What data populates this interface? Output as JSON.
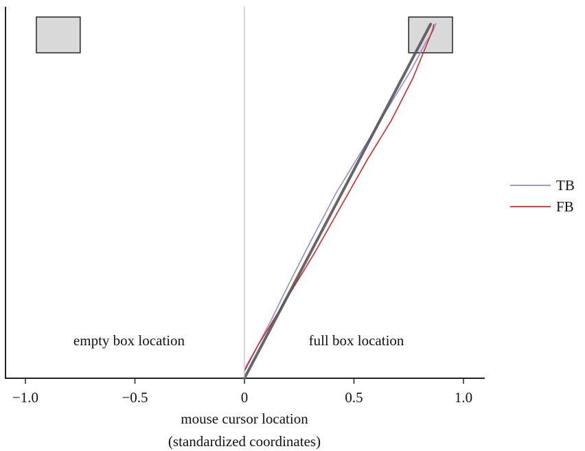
{
  "chart_data": {
    "type": "line",
    "xlabel_line1": "mouse cursor location",
    "xlabel_line2": "(standardized coordinates)",
    "xlim": [
      -1.1,
      1.1
    ],
    "ylim": [
      0,
      1
    ],
    "x_ticks": [
      {
        "value": -1.0,
        "label": "−1.0"
      },
      {
        "value": -0.5,
        "label": "−0.5"
      },
      {
        "value": 0,
        "label": "0"
      },
      {
        "value": 0.5,
        "label": "0.5"
      },
      {
        "value": 1.0,
        "label": "1.0"
      }
    ],
    "region_labels": {
      "left": "empty box location",
      "right": "full box location"
    },
    "legend_position": "right",
    "series": [
      {
        "name": "TB",
        "color": "#8c8ce0",
        "points": [
          [
            0,
            0.02
          ],
          [
            0.01,
            0.03
          ],
          [
            0.06,
            0.09
          ],
          [
            0.12,
            0.16
          ],
          [
            0.2,
            0.26
          ],
          [
            0.3,
            0.38
          ],
          [
            0.42,
            0.52
          ],
          [
            0.55,
            0.65
          ],
          [
            0.66,
            0.76
          ],
          [
            0.76,
            0.86
          ],
          [
            0.82,
            0.93
          ],
          [
            0.86,
            0.97
          ],
          [
            0.875,
            0.993
          ]
        ]
      },
      {
        "name": "FB",
        "color": "#dd2222",
        "points": [
          [
            0,
            0.02
          ],
          [
            0.01,
            0.035
          ],
          [
            0.06,
            0.09
          ],
          [
            0.13,
            0.16
          ],
          [
            0.22,
            0.25
          ],
          [
            0.32,
            0.35
          ],
          [
            0.44,
            0.48
          ],
          [
            0.56,
            0.61
          ],
          [
            0.67,
            0.72
          ],
          [
            0.77,
            0.84
          ],
          [
            0.83,
            0.93
          ],
          [
            0.86,
            0.975
          ],
          [
            0.865,
            0.99
          ]
        ]
      }
    ],
    "reference_line": {
      "color": "#555555",
      "points": [
        [
          0,
          0
        ],
        [
          0.85,
          0.99
        ]
      ]
    },
    "boxes": [
      {
        "x_min": -0.95,
        "x_max": -0.75,
        "y_min": 0.91,
        "y_max": 1.01,
        "fill": "#d9d9d9"
      },
      {
        "x_min": 0.75,
        "x_max": 0.95,
        "y_min": 0.91,
        "y_max": 1.01,
        "fill": "#d9d9d9"
      }
    ]
  }
}
